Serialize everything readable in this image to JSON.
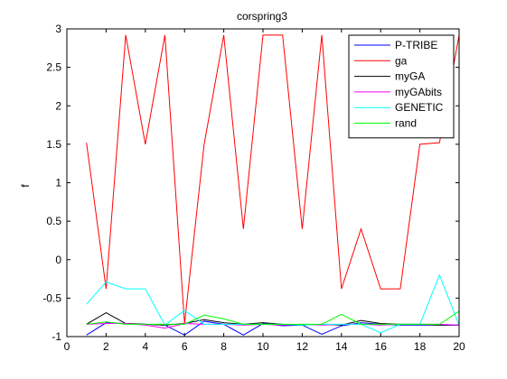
{
  "chart_data": {
    "type": "line",
    "title": "corspring3",
    "xlabel": "",
    "ylabel": "f",
    "xlim": [
      0,
      20
    ],
    "ylim": [
      -1,
      3
    ],
    "xticks": [
      0,
      2,
      4,
      6,
      8,
      10,
      12,
      14,
      16,
      18,
      20
    ],
    "yticks": [
      -1,
      -0.5,
      0,
      0.5,
      1,
      1.5,
      2,
      2.5,
      3
    ],
    "xtick_labels": [
      "0",
      "2",
      "4",
      "6",
      "8",
      "10",
      "12",
      "14",
      "16",
      "18",
      "20"
    ],
    "ytick_labels": [
      "-1",
      "-0.5",
      "0",
      "0.5",
      "1",
      "1.5",
      "2",
      "2.5",
      "3"
    ],
    "grid": false,
    "legend_position": "top-right",
    "x": [
      1,
      2,
      3,
      4,
      5,
      6,
      7,
      8,
      9,
      10,
      11,
      12,
      13,
      14,
      15,
      16,
      17,
      18,
      19,
      20
    ],
    "series": [
      {
        "name": "P-TRIBE",
        "color": "#0000ff",
        "values": [
          -0.98,
          -0.82,
          -0.83,
          -0.84,
          -0.85,
          -0.98,
          -0.8,
          -0.84,
          -0.98,
          -0.83,
          -0.86,
          -0.85,
          -0.97,
          -0.86,
          -0.82,
          -0.84,
          -0.85,
          -0.85,
          -0.85,
          -0.85
        ]
      },
      {
        "name": "ga",
        "color": "#ff0000",
        "values": [
          1.52,
          -0.38,
          2.92,
          1.5,
          2.92,
          -0.83,
          1.5,
          2.92,
          0.4,
          2.92,
          2.92,
          0.4,
          2.92,
          -0.38,
          0.4,
          -0.38,
          -0.38,
          1.5,
          1.52,
          2.92
        ]
      },
      {
        "name": "myGA",
        "color": "#000000",
        "values": [
          -0.84,
          -0.69,
          -0.83,
          -0.84,
          -0.85,
          -0.83,
          -0.78,
          -0.82,
          -0.84,
          -0.82,
          -0.84,
          -0.85,
          -0.84,
          -0.85,
          -0.79,
          -0.83,
          -0.84,
          -0.84,
          -0.85,
          -0.85
        ]
      },
      {
        "name": "myGAbits",
        "color": "#ff00ff",
        "values": [
          -0.84,
          -0.83,
          -0.83,
          -0.85,
          -0.89,
          -0.83,
          -0.84,
          -0.84,
          -0.85,
          -0.84,
          -0.85,
          -0.84,
          -0.85,
          -0.84,
          -0.84,
          -0.85,
          -0.84,
          -0.84,
          -0.84,
          -0.85
        ]
      },
      {
        "name": "GENETIC",
        "color": "#00ffff",
        "values": [
          -0.58,
          -0.29,
          -0.38,
          -0.38,
          -0.85,
          -0.66,
          -0.84,
          -0.84,
          -0.84,
          -0.84,
          -0.84,
          -0.85,
          -0.84,
          -0.84,
          -0.84,
          -0.95,
          -0.84,
          -0.84,
          -0.2,
          -0.85
        ]
      },
      {
        "name": "rand",
        "color": "#00ff00",
        "values": [
          -0.84,
          -0.81,
          -0.84,
          -0.84,
          -0.84,
          -0.84,
          -0.72,
          -0.77,
          -0.84,
          -0.84,
          -0.84,
          -0.84,
          -0.84,
          -0.71,
          -0.84,
          -0.84,
          -0.84,
          -0.84,
          -0.84,
          -0.67
        ]
      }
    ]
  }
}
